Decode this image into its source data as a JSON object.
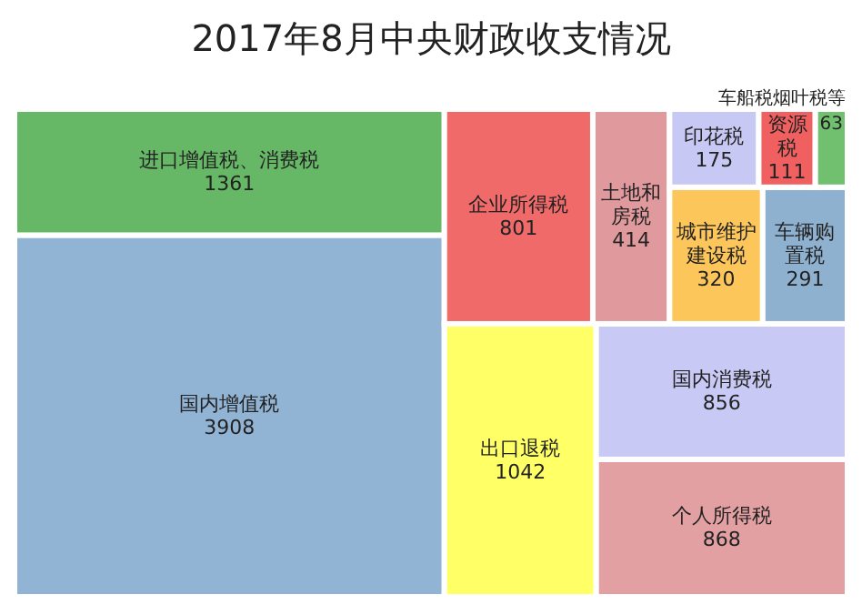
{
  "chart_data": {
    "type": "other",
    "title": "2017年8月中央财政收支情况",
    "categories": [
      "国内增值税",
      "进口增值税、消费税",
      "出口退税",
      "个人所得税",
      "国内消费税",
      "企业所得税",
      "土地和房税",
      "城市维护建设税",
      "车辆购置税",
      "印花税",
      "资源税",
      "车船税烟叶税等"
    ],
    "values": [
      3908,
      1361,
      1042,
      868,
      856,
      801,
      414,
      320,
      291,
      175,
      111,
      63
    ],
    "colors": [
      "#92b4d4",
      "#66b866",
      "#ffff66",
      "#e3a0a3",
      "#c9c9f5",
      "#f06a6a",
      "#e09a9e",
      "#fdc65a",
      "#8fb1d0",
      "#c8c8f4",
      "#f06060",
      "#70c070"
    ],
    "data_labels": true
  }
}
